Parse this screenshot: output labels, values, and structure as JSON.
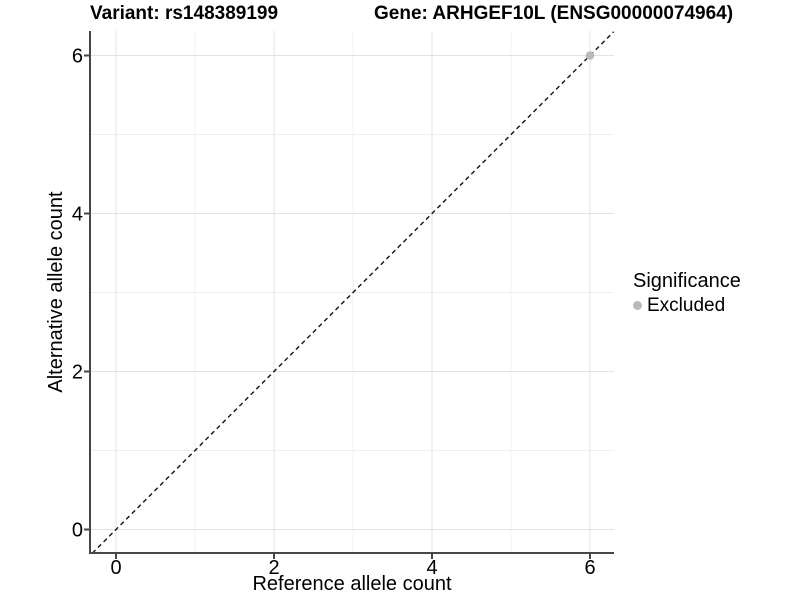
{
  "titles": {
    "variant": "Variant: rs148389199",
    "gene": "Gene: ARHGEF10L (ENSG00000074964)"
  },
  "axes": {
    "x": {
      "label": "Reference allele count",
      "tick_labels": [
        "0",
        "2",
        "4",
        "6"
      ]
    },
    "y": {
      "label": "Alternative allele count",
      "tick_labels": [
        "0",
        "2",
        "4",
        "6"
      ]
    }
  },
  "legend": {
    "title": "Significance",
    "items": [
      {
        "label": "Excluded",
        "marker": "circle",
        "color": "#b9b9b9"
      }
    ]
  },
  "colors": {
    "background": "#ffffff",
    "grid_major": "#e2e2e2",
    "grid_minor": "#efefef",
    "axis_line": "#464646",
    "tick_text": "#000000",
    "identity_line": "#111111",
    "excluded_point": "#b9b9b9"
  },
  "chart_data": {
    "type": "scatter",
    "title": "Variant: rs148389199 | Gene: ARHGEF10L (ENSG00000074964)",
    "xlabel": "Reference allele count",
    "ylabel": "Alternative allele count",
    "xlim": [
      -0.3,
      6.3
    ],
    "ylim": [
      -0.3,
      6.3
    ],
    "x_ticks": [
      0,
      2,
      4,
      6
    ],
    "y_ticks": [
      0,
      2,
      4,
      6
    ],
    "x_minor_gridlines": [
      1,
      3,
      5
    ],
    "y_minor_gridlines": [
      1,
      3,
      5
    ],
    "grid": "major and minor gridlines, light gray on white",
    "legend_position": "right-middle",
    "identity_line": {
      "style": "dashed",
      "from": [
        -0.3,
        -0.3
      ],
      "to": [
        6.3,
        6.3
      ]
    },
    "series": [
      {
        "name": "Excluded",
        "type": "scatter",
        "color": "#b9b9b9",
        "points": [
          [
            6,
            6
          ]
        ]
      }
    ]
  }
}
